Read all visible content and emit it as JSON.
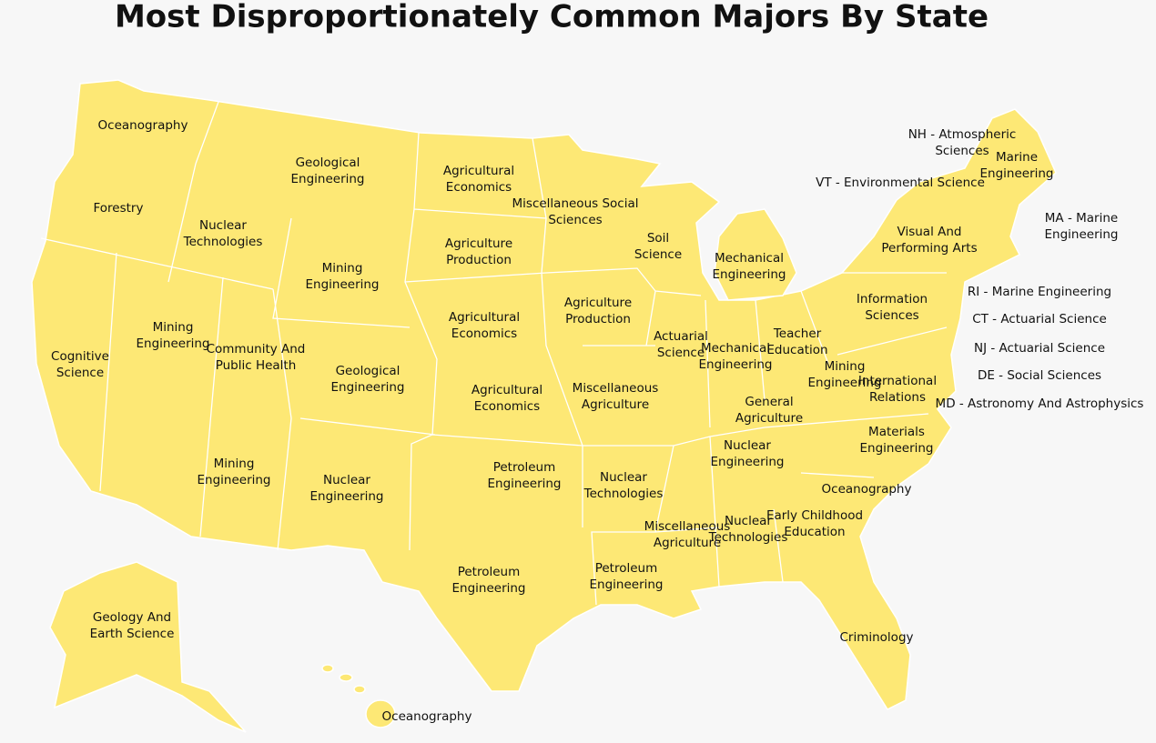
{
  "title": "Most Disproportionately Common Majors By State",
  "labels": [
    {
      "lines": [
        "Oceanography"
      ]
    },
    {
      "lines": [
        "Forestry"
      ]
    },
    {
      "lines": [
        "Nuclear",
        "Technologies"
      ]
    },
    {
      "lines": [
        "Geological",
        "Engineering"
      ]
    },
    {
      "lines": [
        "Agricultural",
        "Economics"
      ]
    },
    {
      "lines": [
        "Miscellaneous Social",
        "Sciences"
      ]
    },
    {
      "lines": [
        "Soil",
        "Science"
      ]
    },
    {
      "lines": [
        "Mechanical",
        "Engineering"
      ]
    },
    {
      "lines": [
        "Agriculture",
        "Production"
      ]
    },
    {
      "lines": [
        "Mining",
        "Engineering"
      ]
    },
    {
      "lines": [
        "Agricultural",
        "Economics"
      ]
    },
    {
      "lines": [
        "Agriculture",
        "Production"
      ]
    },
    {
      "lines": [
        "Mining",
        "Engineering"
      ]
    },
    {
      "lines": [
        "Community And",
        "Public Health"
      ]
    },
    {
      "lines": [
        "Cognitive",
        "Science"
      ]
    },
    {
      "lines": [
        "Geological",
        "Engineering"
      ]
    },
    {
      "lines": [
        "Agricultural",
        "Economics"
      ]
    },
    {
      "lines": [
        "Miscellaneous",
        "Agriculture"
      ]
    },
    {
      "lines": [
        "Actuarial",
        "Science"
      ]
    },
    {
      "lines": [
        "Mechanical",
        "Engineering"
      ]
    },
    {
      "lines": [
        "Teacher",
        "Education"
      ]
    },
    {
      "lines": [
        "Information",
        "Sciences"
      ]
    },
    {
      "lines": [
        "Mining",
        "Engineering"
      ]
    },
    {
      "lines": [
        "International",
        "Relations"
      ]
    },
    {
      "lines": [
        "General",
        "Agriculture"
      ]
    },
    {
      "lines": [
        "Materials",
        "Engineering"
      ]
    },
    {
      "lines": [
        "Nuclear",
        "Engineering"
      ]
    },
    {
      "lines": [
        "Mining",
        "Engineering"
      ]
    },
    {
      "lines": [
        "Nuclear",
        "Engineering"
      ]
    },
    {
      "lines": [
        "Petroleum",
        "Engineering"
      ]
    },
    {
      "lines": [
        "Nuclear",
        "Technologies"
      ]
    },
    {
      "lines": [
        "Oceanography"
      ]
    },
    {
      "lines": [
        "Miscellaneous",
        "Agriculture"
      ]
    },
    {
      "lines": [
        "Nuclear",
        "Technologies"
      ]
    },
    {
      "lines": [
        "Early Childhood",
        "Education"
      ]
    },
    {
      "lines": [
        "Petroleum",
        "Engineering"
      ]
    },
    {
      "lines": [
        "Petroleum",
        "Engineering"
      ]
    },
    {
      "lines": [
        "Criminology"
      ]
    },
    {
      "lines": [
        "Geology And",
        "Earth Science"
      ]
    },
    {
      "lines": [
        "Oceanography"
      ]
    },
    {
      "lines": [
        "NH - Atmospheric",
        "Sciences"
      ]
    },
    {
      "lines": [
        "Marine",
        "Engineering"
      ]
    },
    {
      "lines": [
        "VT - Environmental Science"
      ]
    },
    {
      "lines": [
        "MA - Marine",
        "Engineering"
      ]
    },
    {
      "lines": [
        "Visual And",
        "Performing Arts"
      ]
    },
    {
      "lines": [
        "RI - Marine Engineering"
      ]
    },
    {
      "lines": [
        "CT - Actuarial Science"
      ]
    },
    {
      "lines": [
        "NJ - Actuarial Science"
      ]
    },
    {
      "lines": [
        "DE - Social Sciences"
      ]
    },
    {
      "lines": [
        "MD - Astronomy And Astrophysics"
      ]
    }
  ]
}
